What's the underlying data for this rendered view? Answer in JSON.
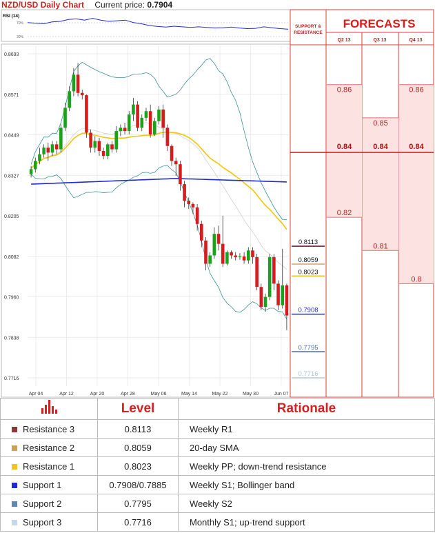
{
  "header": {
    "title": "NZD/USD Daily Chart",
    "price_label": "Current price:",
    "price_value": "0.7904"
  },
  "rsi": {
    "label": "RSI (14)",
    "hi": "70%",
    "lo": "30%",
    "values": [
      62,
      60,
      58,
      64,
      66,
      72,
      74,
      70,
      76,
      70,
      66,
      68,
      70,
      62,
      58,
      52,
      49,
      47,
      50,
      48,
      46,
      48,
      46,
      44,
      45,
      47,
      44,
      42,
      43,
      48,
      45,
      42,
      40
    ]
  },
  "support_resistance_label": [
    "SUPPORT &",
    "RESISTANCE"
  ],
  "forecasts": {
    "title": "FORECASTS",
    "quarters": [
      "Q2 13",
      "Q3 13",
      "Q4 13"
    ],
    "low_labels": [
      "0.82",
      "0.81",
      "0.8"
    ],
    "mid_labels": [
      "0.84",
      "0.84",
      "0.84"
    ],
    "high_labels": [
      "0.86",
      "0.85",
      "0.86"
    ],
    "low": [
      0.82,
      0.81,
      0.8
    ],
    "mid": [
      0.84,
      0.84,
      0.84
    ],
    "high": [
      0.86,
      0.85,
      0.86
    ]
  },
  "chart_data": {
    "type": "candlestick",
    "y_ticks": [
      "0.8693",
      "0.8571",
      "0.8449",
      "0.8327",
      "0.8205",
      "0.8082",
      "0.7960",
      "0.7838",
      "0.7716"
    ],
    "x_ticks": [
      "Apr 04",
      "Apr 12",
      "Apr 20",
      "Apr 28",
      "May 06",
      "May 14",
      "May 22",
      "May 30",
      "Jun 07"
    ],
    "ylim": [
      0.7716,
      0.8693
    ],
    "candles": [
      [
        0.833,
        0.8345,
        0.832,
        0.8355
      ],
      [
        0.8345,
        0.837,
        0.8335,
        0.838
      ],
      [
        0.837,
        0.839,
        0.836,
        0.841
      ],
      [
        0.839,
        0.841,
        0.838,
        0.842
      ],
      [
        0.841,
        0.8395,
        0.837,
        0.8425
      ],
      [
        0.8395,
        0.842,
        0.8385,
        0.843
      ],
      [
        0.842,
        0.8405,
        0.839,
        0.843
      ],
      [
        0.8405,
        0.847,
        0.8395,
        0.848
      ],
      [
        0.847,
        0.853,
        0.846,
        0.8545
      ],
      [
        0.853,
        0.858,
        0.852,
        0.8595
      ],
      [
        0.858,
        0.863,
        0.8565,
        0.865
      ],
      [
        0.863,
        0.8575,
        0.8565,
        0.8665
      ],
      [
        0.8575,
        0.8568,
        0.8555,
        0.8585
      ],
      [
        0.8568,
        0.8455,
        0.844,
        0.857
      ],
      [
        0.8455,
        0.841,
        0.8395,
        0.8465
      ],
      [
        0.841,
        0.843,
        0.8395,
        0.8445
      ],
      [
        0.843,
        0.84,
        0.8385,
        0.844
      ],
      [
        0.84,
        0.8385,
        0.8375,
        0.841
      ],
      [
        0.8385,
        0.842,
        0.8375,
        0.8425
      ],
      [
        0.842,
        0.8405,
        0.8395,
        0.843
      ],
      [
        0.8405,
        0.846,
        0.8395,
        0.8475
      ],
      [
        0.846,
        0.847,
        0.8445,
        0.848
      ],
      [
        0.847,
        0.846,
        0.845,
        0.8485
      ],
      [
        0.846,
        0.851,
        0.845,
        0.852
      ],
      [
        0.851,
        0.854,
        0.849,
        0.856
      ],
      [
        0.854,
        0.847,
        0.846,
        0.855
      ],
      [
        0.847,
        0.85,
        0.846,
        0.851
      ],
      [
        0.85,
        0.852,
        0.849,
        0.853
      ],
      [
        0.852,
        0.845,
        0.844,
        0.854
      ],
      [
        0.845,
        0.849,
        0.8445,
        0.85
      ],
      [
        0.849,
        0.8525,
        0.848,
        0.8535
      ],
      [
        0.8525,
        0.847,
        0.844,
        0.854
      ],
      [
        0.847,
        0.8415,
        0.84,
        0.848
      ],
      [
        0.8415,
        0.837,
        0.8355,
        0.842
      ],
      [
        0.837,
        0.836,
        0.8325,
        0.838
      ],
      [
        0.836,
        0.83,
        0.828,
        0.837
      ],
      [
        0.83,
        0.825,
        0.823,
        0.831
      ],
      [
        0.825,
        0.824,
        0.8225,
        0.826
      ],
      [
        0.824,
        0.823,
        0.821,
        0.8245
      ],
      [
        0.823,
        0.818,
        0.816,
        0.824
      ],
      [
        0.818,
        0.813,
        0.811,
        0.819
      ],
      [
        0.813,
        0.806,
        0.804,
        0.814
      ],
      [
        0.806,
        0.8085,
        0.805,
        0.8095
      ],
      [
        0.8085,
        0.815,
        0.8075,
        0.817
      ],
      [
        0.815,
        0.812,
        0.81,
        0.8175
      ],
      [
        0.812,
        0.806,
        0.805,
        0.8205
      ],
      [
        0.806,
        0.8095,
        0.8055,
        0.81
      ],
      [
        0.8095,
        0.8085,
        0.8075,
        0.81
      ],
      [
        0.8085,
        0.808,
        0.807,
        0.8095
      ],
      [
        0.808,
        0.8082,
        0.8072,
        0.8092
      ],
      [
        0.8082,
        0.807,
        0.806,
        0.8095
      ],
      [
        0.807,
        0.81,
        0.806,
        0.811
      ],
      [
        0.81,
        0.808,
        0.806,
        0.811
      ],
      [
        0.808,
        0.799,
        0.798,
        0.809
      ],
      [
        0.799,
        0.793,
        0.792,
        0.8
      ],
      [
        0.793,
        0.796,
        0.7915,
        0.797
      ],
      [
        0.796,
        0.808,
        0.795,
        0.809
      ],
      [
        0.808,
        0.8,
        0.798,
        0.809
      ],
      [
        0.8,
        0.7935,
        0.792,
        0.801
      ],
      [
        0.7935,
        0.7995,
        0.7925,
        0.8105
      ],
      [
        0.7995,
        0.7904,
        0.786,
        0.8
      ]
    ],
    "levels": [
      {
        "key": "r3",
        "name": "Resistance 3",
        "value": 0.8113,
        "label": "0.8113",
        "color": "#6b1d2e",
        "text_color": "#111111"
      },
      {
        "key": "r2",
        "name": "Resistance 2",
        "value": 0.8059,
        "label": "0.8059",
        "color": "#d9a066",
        "text_color": "#111111"
      },
      {
        "key": "r1",
        "name": "Resistance 1",
        "value": 0.8023,
        "label": "0.8023",
        "color": "#f0c020",
        "text_color": "#111111"
      },
      {
        "key": "s1",
        "name": "Support 1",
        "value": 0.7908,
        "label": "0.7908",
        "color": "#1f2bd0",
        "text_color": "#1f2bd0"
      },
      {
        "key": "s2",
        "name": "Support 2",
        "value": 0.7795,
        "label": "0.7795",
        "color": "#4a6ea8",
        "text_color": "#4a6ea8"
      },
      {
        "key": "s3",
        "name": "Support 3",
        "value": 0.7716,
        "label": "0.7716",
        "color": "#b4ccd4",
        "text_color": "#a9c4cc"
      }
    ]
  },
  "table": {
    "headers": {
      "level": "Level",
      "rationale": "Rationale"
    },
    "rows": [
      {
        "name": "Resistance 3",
        "level": "0.8113",
        "rationale": "Weekly R1",
        "color": "#8b3a3a"
      },
      {
        "name": "Resistance 2",
        "level": "0.8059",
        "rationale": "20-day SMA",
        "color": "#c9a060"
      },
      {
        "name": "Resistance 1",
        "level": "0.8023",
        "rationale": "Weekly PP; down-trend resistance",
        "color": "#f2c41c"
      },
      {
        "name": "Support 1",
        "level": "0.7908/0.7885",
        "rationale": "Weekly S1; Bollinger band",
        "color": "#1f2bd0"
      },
      {
        "name": "Support 2",
        "level": "0.7795",
        "rationale": "Weekly S2",
        "color": "#5f85b5"
      },
      {
        "name": "Support 3",
        "level": "0.7716",
        "rationale": "Monthly S1; up-trend support",
        "color": "#c5d8e8"
      }
    ]
  }
}
